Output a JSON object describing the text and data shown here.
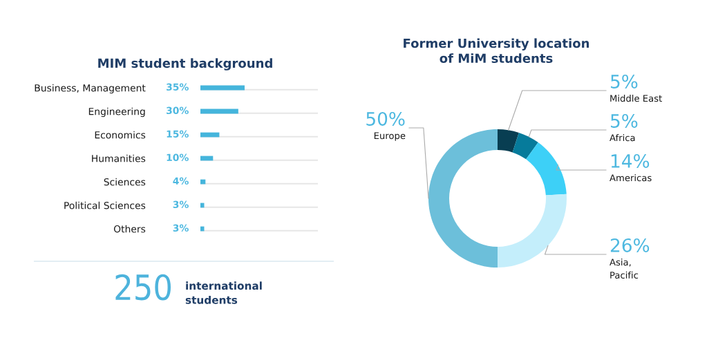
{
  "chart_data": [
    {
      "type": "bar",
      "orientation": "horizontal",
      "title": "MIM student background",
      "categories": [
        "Business, Management",
        "Engineering",
        "Economics",
        "Humanities",
        "Sciences",
        "Political Sciences",
        "Others"
      ],
      "values": [
        35,
        30,
        15,
        10,
        4,
        3,
        3
      ],
      "value_labels": [
        "35%",
        "30%",
        "15%",
        "10%",
        "4%",
        "3%",
        "3%"
      ],
      "color": "#45b5dc",
      "xlim": [
        0,
        93
      ],
      "grid": "y",
      "tick_labels": "y"
    },
    {
      "type": "donut",
      "title": "Former University location\nof MiM students",
      "categories": [
        "Middle East",
        "Africa",
        "Americas",
        "Asia,\nPacific",
        "Europe"
      ],
      "values": [
        5,
        5,
        14,
        26,
        50
      ],
      "value_labels": [
        "5%",
        "5%",
        "14%",
        "26%",
        "50%"
      ],
      "colors": [
        "#083e52",
        "#067b9b",
        "#3dd0f7",
        "#c4eefb",
        "#6cbfda"
      ]
    },
    {
      "type": "other",
      "annotations": [
        "250",
        "international\nstudents"
      ]
    }
  ]
}
